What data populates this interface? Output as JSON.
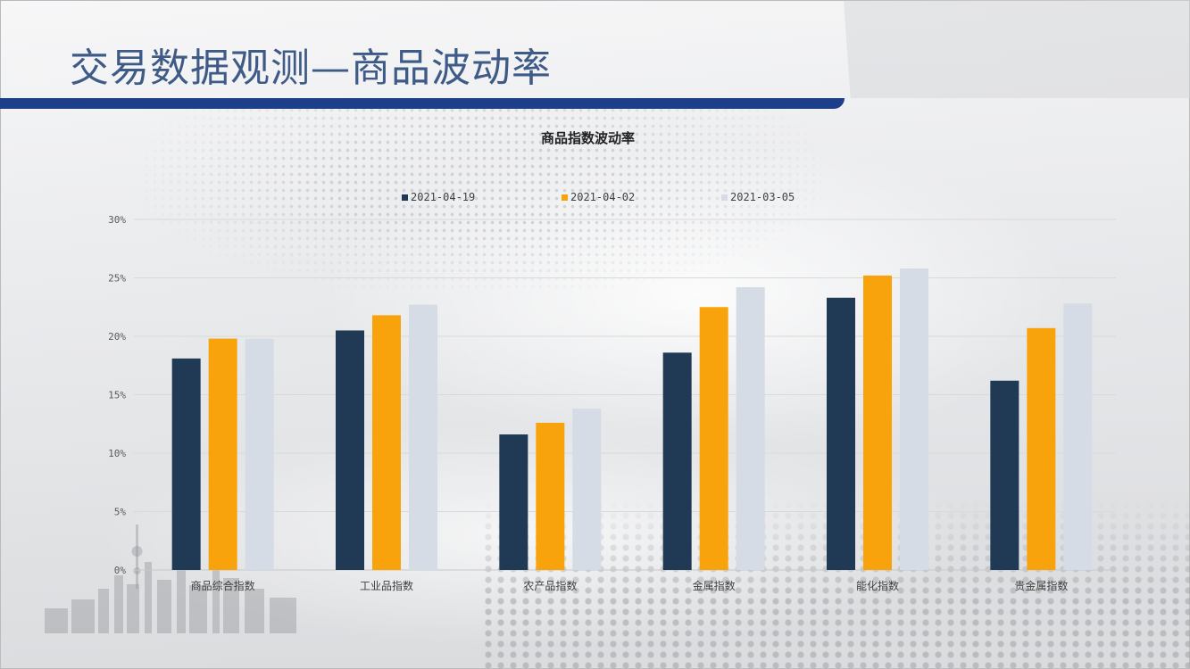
{
  "slide": {
    "title": "交易数据观测—商品波动率"
  },
  "colors": {
    "title_text": "#3e5a86",
    "title_bar": "#1d3f8a",
    "gridline": "#d9d9d9"
  },
  "chart_data": {
    "type": "bar",
    "title": "商品指数波动率",
    "xlabel": "",
    "ylabel": "",
    "categories": [
      "商品综合指数",
      "工业品指数",
      "农产品指数",
      "金属指数",
      "能化指数",
      "贵金属指数"
    ],
    "series": [
      {
        "name": "2021-04-19",
        "color": "#203a55",
        "values": [
          18.1,
          20.5,
          11.6,
          18.6,
          23.3,
          16.2
        ]
      },
      {
        "name": "2021-04-02",
        "color": "#f8a30b",
        "values": [
          19.8,
          21.8,
          12.6,
          22.5,
          25.2,
          20.7
        ]
      },
      {
        "name": "2021-03-05",
        "color": "#d5dce5",
        "values": [
          19.8,
          22.7,
          13.8,
          24.2,
          25.8,
          22.8
        ]
      }
    ],
    "ylim": [
      0,
      30
    ],
    "y_ticks": [
      "0%",
      "5%",
      "10%",
      "15%",
      "20%",
      "25%",
      "30%"
    ],
    "y_tick_values": [
      0,
      5,
      10,
      15,
      20,
      25,
      30
    ],
    "grid": true,
    "legend_position": "top"
  }
}
